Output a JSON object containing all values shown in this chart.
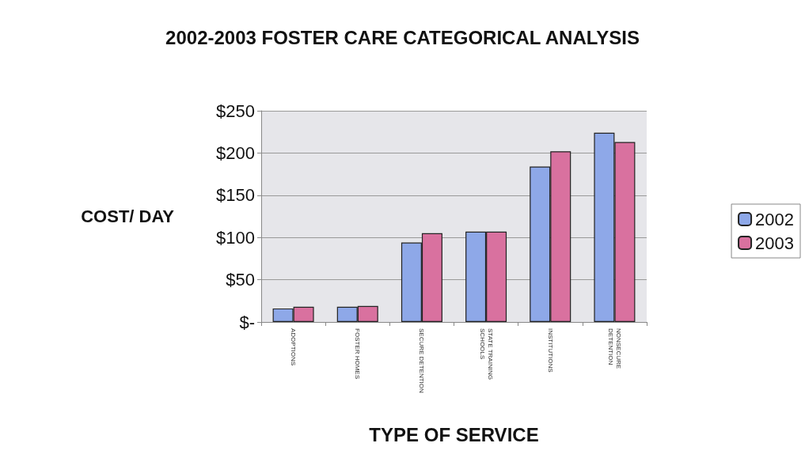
{
  "chart_data": {
    "type": "bar",
    "title": "2002-2003 FOSTER CARE CATEGORICAL ANALYSIS",
    "xlabel": "TYPE OF SERVICE",
    "ylabel": "COST/ DAY",
    "categories": [
      "ADOPTIONS",
      "FOSTER HOMES",
      "SECURE DETENTION",
      "STATE TRAINING SCHOOLS",
      "INSTITUTIONS",
      "NONSECURE DETENTION"
    ],
    "series": [
      {
        "name": "2002",
        "color": "#8ea8e8",
        "values": [
          16,
          18,
          94,
          107,
          184,
          224
        ]
      },
      {
        "name": "2003",
        "color": "#d9719f",
        "values": [
          18,
          19,
          105,
          107,
          202,
          213
        ]
      }
    ],
    "ylim": [
      0,
      250
    ],
    "yticks": [
      {
        "value": 0,
        "label": "$-"
      },
      {
        "value": 50,
        "label": "$50"
      },
      {
        "value": 100,
        "label": "$100"
      },
      {
        "value": 150,
        "label": "$150"
      },
      {
        "value": 200,
        "label": "$200"
      },
      {
        "value": 250,
        "label": "$250"
      }
    ],
    "grid": "y",
    "legend": "right"
  }
}
